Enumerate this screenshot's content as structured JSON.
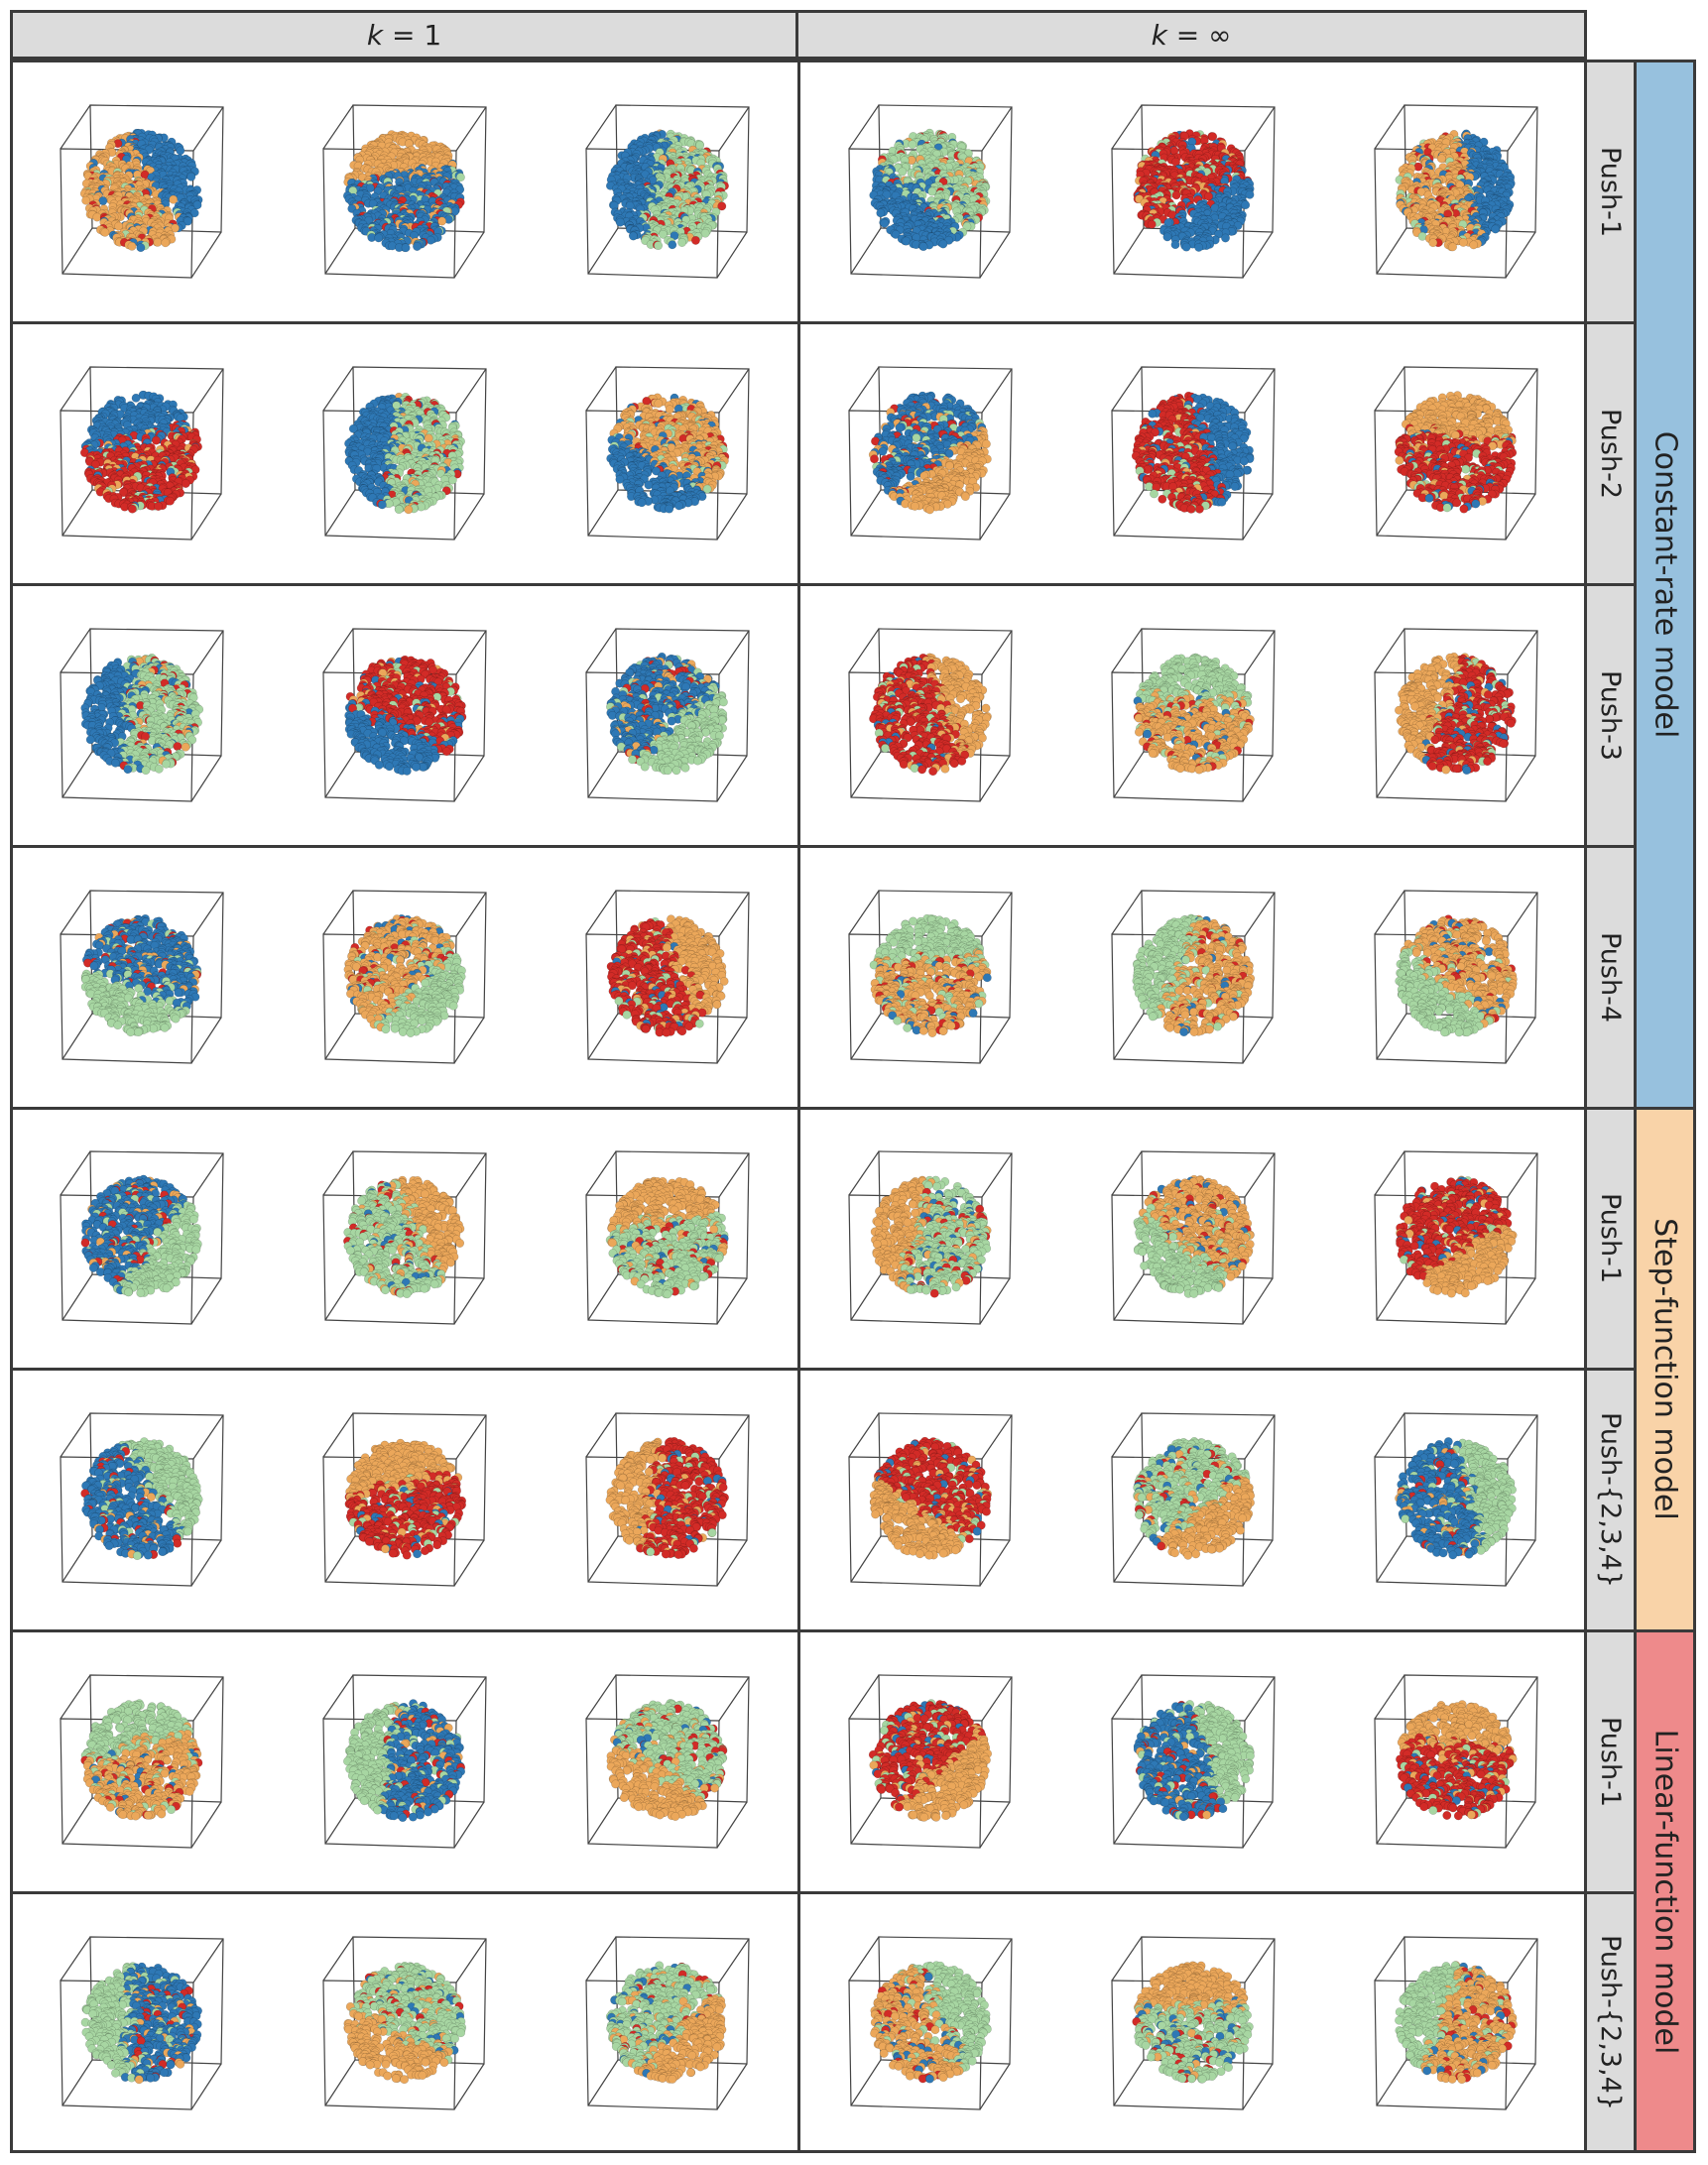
{
  "column_headers": [
    {
      "k": "k",
      "rest": " = 1"
    },
    {
      "k": "k",
      "rest": " = ∞"
    }
  ],
  "row_labels": [
    "Push-1",
    "Push-2",
    "Push-3",
    "Push-4",
    "Push-1",
    "Push-{2,3,4}",
    "Push-1",
    "Push-{2,3,4}"
  ],
  "model_groups": [
    {
      "label": "Constant-rate model",
      "color": "#97c1de",
      "rows": [
        0,
        1,
        2,
        3
      ]
    },
    {
      "label": "Step-function model",
      "color": "#f9d3a8",
      "rows": [
        4,
        5
      ]
    },
    {
      "label": "Linear-function model",
      "color": "#ee8a8b",
      "rows": [
        6,
        7
      ]
    }
  ],
  "palette": {
    "blue": "#2e78b5",
    "orange": "#eba75a",
    "green": "#a7d6a2",
    "red": "#d22b27"
  },
  "cells": [
    [
      "gold",
      "blue",
      "green",
      "green",
      "red",
      "gold"
    ],
    [
      "red",
      "green",
      "gold",
      "blue",
      "red",
      "red"
    ],
    [
      "green",
      "red",
      "blue",
      "red",
      "gold",
      "red"
    ],
    [
      "blue",
      "gold",
      "red",
      "gold",
      "gold",
      "gold"
    ],
    [
      "blue",
      "green",
      "green",
      "green",
      "gold",
      "red"
    ],
    [
      "blue",
      "red",
      "red",
      "red",
      "green",
      "blue"
    ],
    [
      "gold",
      "blue",
      "green",
      "red",
      "blue",
      "red"
    ],
    [
      "blue",
      "green",
      "green",
      "gold",
      "green",
      "gold"
    ]
  ]
}
